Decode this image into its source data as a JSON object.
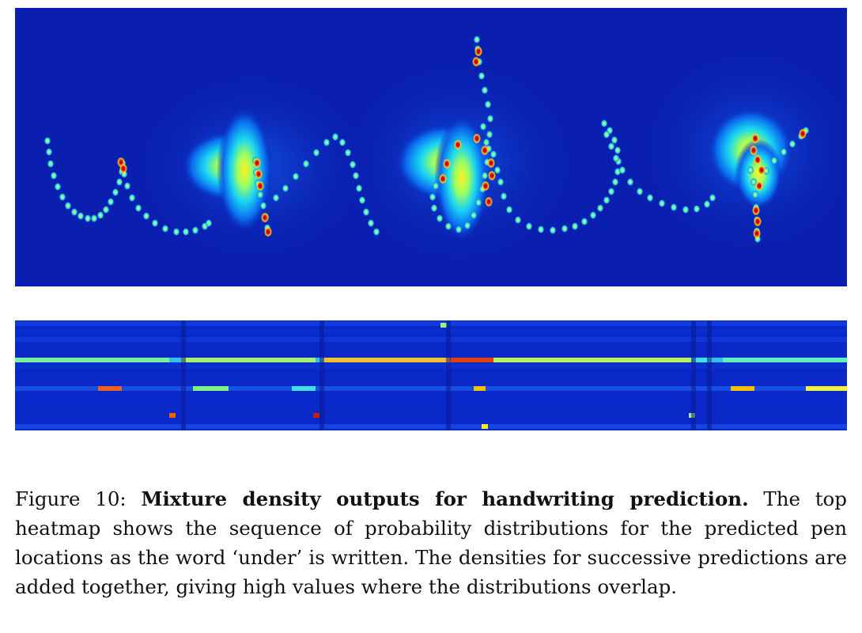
{
  "figure": {
    "label": "Figure 10:",
    "title": "Mixture density outputs for handwriting prediction.",
    "body": "The top heatmap shows the sequence of probability distributions for the predicted pen locations as the word ‘under’ is written.  The densities for successive predictions are added together, giving high values where the distributions overlap."
  },
  "colors": {
    "background_blue": "#0a1fb0",
    "colormap": [
      "#00007f",
      "#0000ff",
      "#00ffff",
      "#ffff00",
      "#ff0000",
      "#7f0000"
    ]
  }
}
